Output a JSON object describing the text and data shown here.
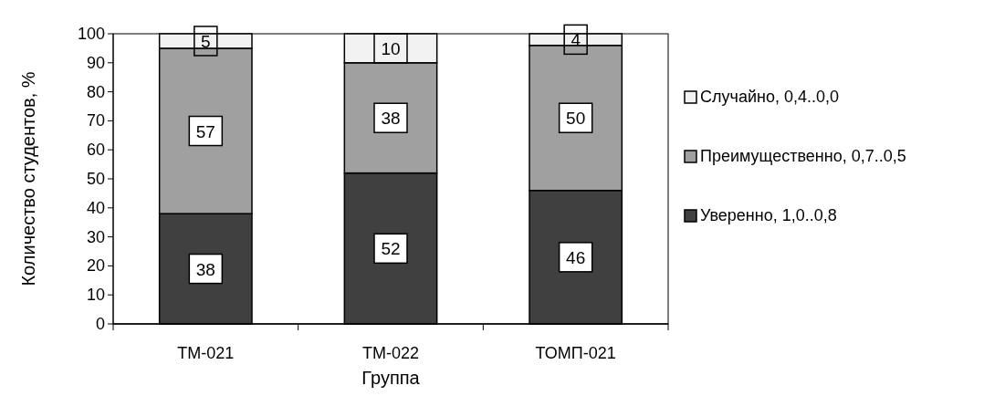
{
  "chart_data": {
    "type": "bar",
    "stacked": true,
    "xlabel": "Группа",
    "ylabel": "Количество студентов, %",
    "categories": [
      "ТМ-021",
      "ТМ-022",
      "ТОМП-021"
    ],
    "series": [
      {
        "name": "Уверенно, 1,0..0,8",
        "color": "#404040",
        "values": [
          38,
          52,
          46
        ]
      },
      {
        "name": "Преимущественно, 0,7..0,5",
        "color": "#a0a0a0",
        "values": [
          57,
          38,
          50
        ]
      },
      {
        "name": "Случайно, 0,4..0,0",
        "color": "#f2f2f2",
        "values": [
          5,
          10,
          4
        ]
      }
    ],
    "ylim": [
      0,
      100
    ],
    "yticks": [
      0,
      10,
      20,
      30,
      40,
      50,
      60,
      70,
      80,
      90,
      100
    ],
    "data_labels": true,
    "legend": "right",
    "grid": false
  }
}
